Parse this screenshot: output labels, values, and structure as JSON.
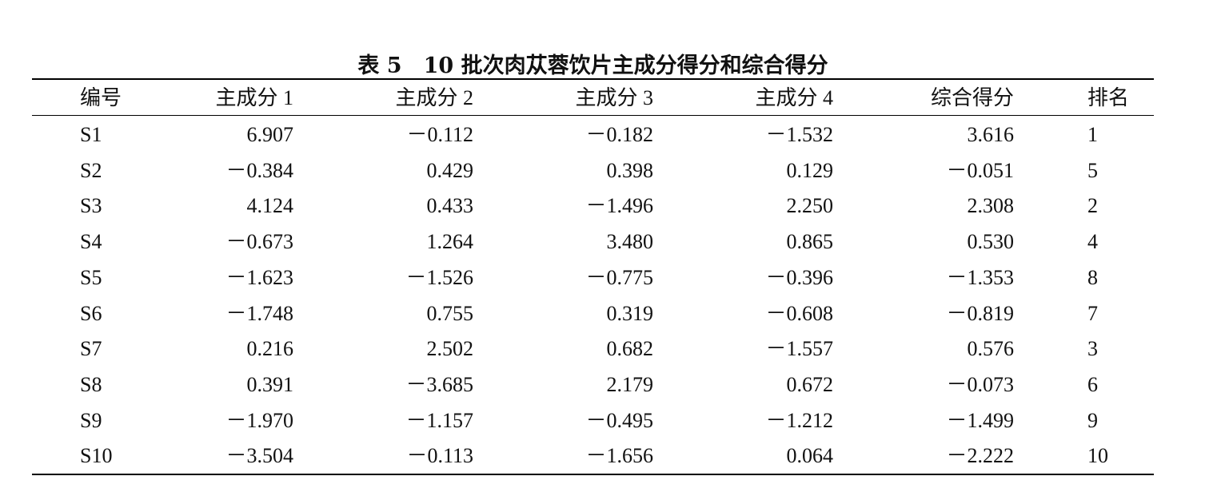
{
  "table": {
    "title": "表 5　10 批次肉苁蓉饮片主成分得分和综合得分",
    "header": [
      "编号",
      "主成分 1",
      "主成分 2",
      "主成分 3",
      "主成分 4",
      "综合得分",
      "排名"
    ],
    "rows": [
      [
        "S1",
        "6.907",
        "－0.112",
        "－0.182",
        "－1.532",
        "3.616",
        "1"
      ],
      [
        "S2",
        "－0.384",
        "0.429",
        "0.398",
        "0.129",
        "－0.051",
        "5"
      ],
      [
        "S3",
        "4.124",
        "0.433",
        "－1.496",
        "2.250",
        "2.308",
        "2"
      ],
      [
        "S4",
        "－0.673",
        "1.264",
        "3.480",
        "0.865",
        "0.530",
        "4"
      ],
      [
        "S5",
        "－1.623",
        "－1.526",
        "－0.775",
        "－0.396",
        "－1.353",
        "8"
      ],
      [
        "S6",
        "－1.748",
        "0.755",
        "0.319",
        "－0.608",
        "－0.819",
        "7"
      ],
      [
        "S7",
        "0.216",
        "2.502",
        "0.682",
        "－1.557",
        "0.576",
        "3"
      ],
      [
        "S8",
        "0.391",
        "－3.685",
        "2.179",
        "0.672",
        "－0.073",
        "6"
      ],
      [
        "S9",
        "－1.970",
        "－1.157",
        "－0.495",
        "－1.212",
        "－1.499",
        "9"
      ],
      [
        "S10",
        "－3.504",
        "－0.113",
        "－1.656",
        "0.064",
        "－2.222",
        "10"
      ]
    ]
  }
}
